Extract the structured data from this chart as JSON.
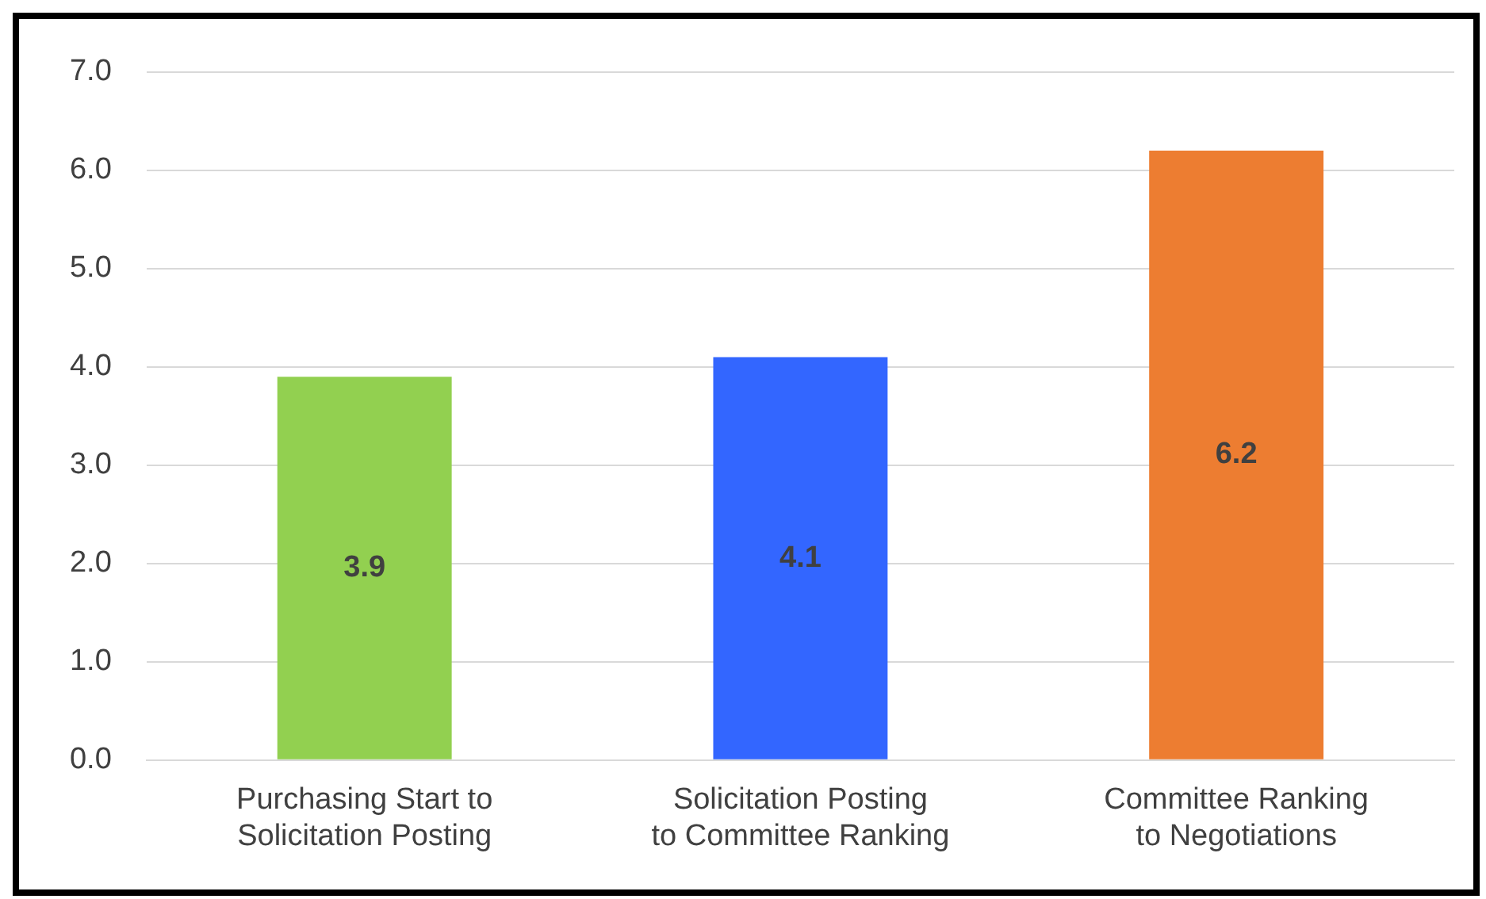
{
  "chart_data": {
    "type": "bar",
    "categories": [
      "Purchasing Start to Solicitation Posting",
      "Solicitation Posting to Committee Ranking",
      "Committee Ranking to Negotiations"
    ],
    "values": [
      3.9,
      4.1,
      6.2
    ],
    "colors": [
      "#92d050",
      "#3366ff",
      "#ed7d31"
    ],
    "ylim": [
      0,
      7
    ],
    "yticks": [
      {
        "value": 0,
        "label": "0.0"
      },
      {
        "value": 1,
        "label": "1.0"
      },
      {
        "value": 2,
        "label": "2.0"
      },
      {
        "value": 3,
        "label": "3.0"
      },
      {
        "value": 4,
        "label": "4.0"
      },
      {
        "value": 5,
        "label": "5.0"
      },
      {
        "value": 6,
        "label": "6.0"
      },
      {
        "value": 7,
        "label": "7.0"
      }
    ],
    "grid": "y",
    "data_labels": true
  }
}
